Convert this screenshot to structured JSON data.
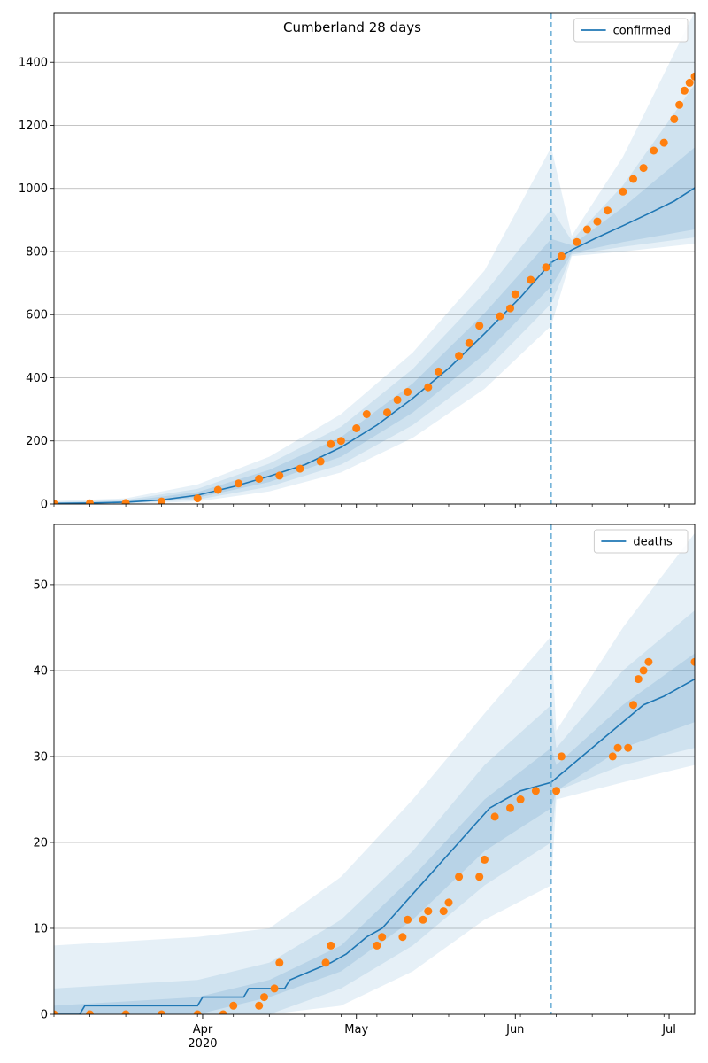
{
  "figure": {
    "title": "Cumberland 28 days"
  },
  "colors": {
    "line": "#1f77b4",
    "points": "#ff7f0e",
    "band": "#1f77b4",
    "grid": "#b0b0b0",
    "vline": "#6baed6"
  },
  "chart_data": [
    {
      "type": "line",
      "title": "Cumberland 28 days",
      "xlabel": "",
      "ylabel": "",
      "x_range": [
        "2020-03-03",
        "2020-07-06"
      ],
      "ylim": [
        0,
        1555
      ],
      "yticks": [
        0,
        200,
        400,
        600,
        800,
        1000,
        1200,
        1400
      ],
      "grid": "horizontal",
      "legend": "top-right",
      "forecast_start": "2020-06-08",
      "series": [
        {
          "name": "confirmed",
          "kind": "median-line"
        },
        {
          "kind": "observed-points"
        }
      ],
      "median": [
        {
          "x": "2020-03-03",
          "y": 2
        },
        {
          "x": "2020-03-10",
          "y": 3
        },
        {
          "x": "2020-03-17",
          "y": 6
        },
        {
          "x": "2020-03-24",
          "y": 13
        },
        {
          "x": "2020-03-31",
          "y": 28
        },
        {
          "x": "2020-04-07",
          "y": 55
        },
        {
          "x": "2020-04-14",
          "y": 88
        },
        {
          "x": "2020-04-21",
          "y": 125
        },
        {
          "x": "2020-04-28",
          "y": 180
        },
        {
          "x": "2020-05-05",
          "y": 250
        },
        {
          "x": "2020-05-12",
          "y": 335
        },
        {
          "x": "2020-05-19",
          "y": 430
        },
        {
          "x": "2020-05-26",
          "y": 540
        },
        {
          "x": "2020-06-02",
          "y": 655
        },
        {
          "x": "2020-06-08",
          "y": 765
        },
        {
          "x": "2020-06-12",
          "y": 805
        },
        {
          "x": "2020-06-17",
          "y": 845
        },
        {
          "x": "2020-06-22",
          "y": 882
        },
        {
          "x": "2020-06-27",
          "y": 920
        },
        {
          "x": "2020-07-02",
          "y": 960
        },
        {
          "x": "2020-07-06",
          "y": 1002
        }
      ],
      "band_inner": [
        {
          "x": "2020-03-03",
          "lo": 1,
          "hi": 4
        },
        {
          "x": "2020-03-17",
          "lo": 4,
          "hi": 9
        },
        {
          "x": "2020-03-31",
          "lo": 20,
          "hi": 38
        },
        {
          "x": "2020-04-14",
          "lo": 70,
          "hi": 108
        },
        {
          "x": "2020-04-28",
          "lo": 150,
          "hi": 212
        },
        {
          "x": "2020-05-12",
          "lo": 290,
          "hi": 382
        },
        {
          "x": "2020-05-26",
          "lo": 475,
          "hi": 605
        },
        {
          "x": "2020-06-08",
          "lo": 690,
          "hi": 840
        },
        {
          "x": "2020-06-12",
          "lo": 795,
          "hi": 820
        },
        {
          "x": "2020-06-22",
          "lo": 830,
          "hi": 940
        },
        {
          "x": "2020-07-06",
          "lo": 870,
          "hi": 1130
        }
      ],
      "band_mid": [
        {
          "x": "2020-03-03",
          "lo": 0,
          "hi": 6
        },
        {
          "x": "2020-03-17",
          "lo": 2,
          "hi": 13
        },
        {
          "x": "2020-03-31",
          "lo": 14,
          "hi": 48
        },
        {
          "x": "2020-04-14",
          "lo": 55,
          "hi": 128
        },
        {
          "x": "2020-04-28",
          "lo": 125,
          "hi": 245
        },
        {
          "x": "2020-05-12",
          "lo": 250,
          "hi": 428
        },
        {
          "x": "2020-05-26",
          "lo": 420,
          "hi": 668
        },
        {
          "x": "2020-06-08",
          "lo": 635,
          "hi": 935
        },
        {
          "x": "2020-06-12",
          "lo": 790,
          "hi": 835
        },
        {
          "x": "2020-06-22",
          "lo": 815,
          "hi": 1010
        },
        {
          "x": "2020-07-06",
          "lo": 845,
          "hi": 1330
        }
      ],
      "band_outer": [
        {
          "x": "2020-03-03",
          "lo": 0,
          "hi": 9
        },
        {
          "x": "2020-03-17",
          "lo": 0,
          "hi": 18
        },
        {
          "x": "2020-03-31",
          "lo": 8,
          "hi": 62
        },
        {
          "x": "2020-04-14",
          "lo": 40,
          "hi": 150
        },
        {
          "x": "2020-04-28",
          "lo": 100,
          "hi": 285
        },
        {
          "x": "2020-05-12",
          "lo": 210,
          "hi": 480
        },
        {
          "x": "2020-05-26",
          "lo": 365,
          "hi": 740
        },
        {
          "x": "2020-06-08",
          "lo": 565,
          "hi": 1130
        },
        {
          "x": "2020-06-12",
          "lo": 785,
          "hi": 850
        },
        {
          "x": "2020-06-22",
          "lo": 800,
          "hi": 1100
        },
        {
          "x": "2020-07-06",
          "lo": 825,
          "hi": 1560
        }
      ],
      "observed": [
        {
          "x": "2020-03-03",
          "y": 1
        },
        {
          "x": "2020-03-10",
          "y": 2
        },
        {
          "x": "2020-03-17",
          "y": 3
        },
        {
          "x": "2020-03-24",
          "y": 8
        },
        {
          "x": "2020-03-31",
          "y": 18
        },
        {
          "x": "2020-04-04",
          "y": 45
        },
        {
          "x": "2020-04-08",
          "y": 65
        },
        {
          "x": "2020-04-12",
          "y": 80
        },
        {
          "x": "2020-04-16",
          "y": 90
        },
        {
          "x": "2020-04-20",
          "y": 112
        },
        {
          "x": "2020-04-24",
          "y": 135
        },
        {
          "x": "2020-04-26",
          "y": 190
        },
        {
          "x": "2020-04-28",
          "y": 200
        },
        {
          "x": "2020-05-01",
          "y": 240
        },
        {
          "x": "2020-05-03",
          "y": 285
        },
        {
          "x": "2020-05-07",
          "y": 290
        },
        {
          "x": "2020-05-09",
          "y": 330
        },
        {
          "x": "2020-05-11",
          "y": 355
        },
        {
          "x": "2020-05-15",
          "y": 370
        },
        {
          "x": "2020-05-17",
          "y": 420
        },
        {
          "x": "2020-05-21",
          "y": 470
        },
        {
          "x": "2020-05-23",
          "y": 510
        },
        {
          "x": "2020-05-25",
          "y": 565
        },
        {
          "x": "2020-05-29",
          "y": 595
        },
        {
          "x": "2020-05-31",
          "y": 620
        },
        {
          "x": "2020-06-01",
          "y": 665
        },
        {
          "x": "2020-06-04",
          "y": 710
        },
        {
          "x": "2020-06-07",
          "y": 750
        },
        {
          "x": "2020-06-10",
          "y": 785
        },
        {
          "x": "2020-06-13",
          "y": 830
        },
        {
          "x": "2020-06-15",
          "y": 870
        },
        {
          "x": "2020-06-17",
          "y": 895
        },
        {
          "x": "2020-06-19",
          "y": 930
        },
        {
          "x": "2020-06-22",
          "y": 990
        },
        {
          "x": "2020-06-24",
          "y": 1030
        },
        {
          "x": "2020-06-26",
          "y": 1065
        },
        {
          "x": "2020-06-28",
          "y": 1120
        },
        {
          "x": "2020-06-30",
          "y": 1145
        },
        {
          "x": "2020-07-02",
          "y": 1220
        },
        {
          "x": "2020-07-03",
          "y": 1265
        },
        {
          "x": "2020-07-04",
          "y": 1310
        },
        {
          "x": "2020-07-05",
          "y": 1335
        },
        {
          "x": "2020-07-06",
          "y": 1355
        }
      ]
    },
    {
      "type": "line",
      "title": "",
      "xlabel": "",
      "ylabel": "",
      "x_range": [
        "2020-03-03",
        "2020-07-06"
      ],
      "ylim": [
        0,
        57
      ],
      "yticks": [
        0,
        10,
        20,
        30,
        40,
        50
      ],
      "x_tick_labels": [
        {
          "x": "2020-04-01",
          "label": "Apr",
          "sublabel": "2020"
        },
        {
          "x": "2020-05-01",
          "label": "May"
        },
        {
          "x": "2020-06-01",
          "label": "Jun"
        },
        {
          "x": "2020-07-01",
          "label": "Jul"
        }
      ],
      "grid": "horizontal",
      "legend": "top-right",
      "forecast_start": "2020-06-08",
      "series": [
        {
          "name": "deaths",
          "kind": "median-line"
        },
        {
          "kind": "observed-points"
        }
      ],
      "median": [
        {
          "x": "2020-03-03",
          "y": 0
        },
        {
          "x": "2020-03-08",
          "y": 0
        },
        {
          "x": "2020-03-09",
          "y": 1
        },
        {
          "x": "2020-03-31",
          "y": 1
        },
        {
          "x": "2020-04-01",
          "y": 2
        },
        {
          "x": "2020-04-09",
          "y": 2
        },
        {
          "x": "2020-04-10",
          "y": 3
        },
        {
          "x": "2020-04-17",
          "y": 3
        },
        {
          "x": "2020-04-18",
          "y": 4
        },
        {
          "x": "2020-04-22",
          "y": 5
        },
        {
          "x": "2020-04-26",
          "y": 6
        },
        {
          "x": "2020-04-29",
          "y": 7
        },
        {
          "x": "2020-05-03",
          "y": 9
        },
        {
          "x": "2020-05-06",
          "y": 10
        },
        {
          "x": "2020-05-09",
          "y": 12
        },
        {
          "x": "2020-05-12",
          "y": 14
        },
        {
          "x": "2020-05-15",
          "y": 16
        },
        {
          "x": "2020-05-18",
          "y": 18
        },
        {
          "x": "2020-05-21",
          "y": 20
        },
        {
          "x": "2020-05-24",
          "y": 22
        },
        {
          "x": "2020-05-27",
          "y": 24
        },
        {
          "x": "2020-05-30",
          "y": 25
        },
        {
          "x": "2020-06-02",
          "y": 26
        },
        {
          "x": "2020-06-08",
          "y": 27
        },
        {
          "x": "2020-06-10",
          "y": 28
        },
        {
          "x": "2020-06-14",
          "y": 30
        },
        {
          "x": "2020-06-18",
          "y": 32
        },
        {
          "x": "2020-06-22",
          "y": 34
        },
        {
          "x": "2020-06-26",
          "y": 36
        },
        {
          "x": "2020-06-30",
          "y": 37
        },
        {
          "x": "2020-07-03",
          "y": 38
        },
        {
          "x": "2020-07-06",
          "y": 39
        }
      ],
      "band_inner": [
        {
          "x": "2020-03-03",
          "lo": 0,
          "hi": 1
        },
        {
          "x": "2020-03-31",
          "lo": 0,
          "hi": 2
        },
        {
          "x": "2020-04-14",
          "lo": 2,
          "hi": 4
        },
        {
          "x": "2020-04-28",
          "lo": 5,
          "hi": 8
        },
        {
          "x": "2020-05-12",
          "lo": 11,
          "hi": 16
        },
        {
          "x": "2020-05-26",
          "lo": 19,
          "hi": 25
        },
        {
          "x": "2020-06-08",
          "lo": 24,
          "hi": 31
        },
        {
          "x": "2020-06-09",
          "lo": 26,
          "hi": 29
        },
        {
          "x": "2020-06-22",
          "lo": 31,
          "hi": 36
        },
        {
          "x": "2020-07-06",
          "lo": 34,
          "hi": 42
        }
      ],
      "band_mid": [
        {
          "x": "2020-03-03",
          "lo": 0,
          "hi": 3
        },
        {
          "x": "2020-03-31",
          "lo": 0,
          "hi": 4
        },
        {
          "x": "2020-04-14",
          "lo": 0,
          "hi": 6
        },
        {
          "x": "2020-04-28",
          "lo": 3,
          "hi": 11
        },
        {
          "x": "2020-05-12",
          "lo": 8,
          "hi": 19
        },
        {
          "x": "2020-05-26",
          "lo": 15,
          "hi": 29
        },
        {
          "x": "2020-06-08",
          "lo": 20,
          "hi": 36
        },
        {
          "x": "2020-06-09",
          "lo": 26,
          "hi": 31
        },
        {
          "x": "2020-06-22",
          "lo": 29,
          "hi": 40
        },
        {
          "x": "2020-07-06",
          "lo": 31,
          "hi": 47
        }
      ],
      "band_outer": [
        {
          "x": "2020-03-03",
          "lo": 0,
          "hi": 8
        },
        {
          "x": "2020-03-31",
          "lo": 0,
          "hi": 9
        },
        {
          "x": "2020-04-14",
          "lo": 0,
          "hi": 10
        },
        {
          "x": "2020-04-28",
          "lo": 1,
          "hi": 16
        },
        {
          "x": "2020-05-12",
          "lo": 5,
          "hi": 25
        },
        {
          "x": "2020-05-26",
          "lo": 11,
          "hi": 35
        },
        {
          "x": "2020-06-08",
          "lo": 15,
          "hi": 44
        },
        {
          "x": "2020-06-09",
          "lo": 25,
          "hi": 33
        },
        {
          "x": "2020-06-22",
          "lo": 27,
          "hi": 45
        },
        {
          "x": "2020-07-06",
          "lo": 29,
          "hi": 56
        }
      ],
      "observed": [
        {
          "x": "2020-03-03",
          "y": 0
        },
        {
          "x": "2020-03-10",
          "y": 0
        },
        {
          "x": "2020-03-17",
          "y": 0
        },
        {
          "x": "2020-03-24",
          "y": 0
        },
        {
          "x": "2020-03-31",
          "y": 0
        },
        {
          "x": "2020-04-05",
          "y": 0
        },
        {
          "x": "2020-04-07",
          "y": 1
        },
        {
          "x": "2020-04-12",
          "y": 1
        },
        {
          "x": "2020-04-13",
          "y": 2
        },
        {
          "x": "2020-04-15",
          "y": 3
        },
        {
          "x": "2020-04-16",
          "y": 6
        },
        {
          "x": "2020-04-25",
          "y": 6
        },
        {
          "x": "2020-04-26",
          "y": 8
        },
        {
          "x": "2020-05-05",
          "y": 8
        },
        {
          "x": "2020-05-06",
          "y": 9
        },
        {
          "x": "2020-05-10",
          "y": 9
        },
        {
          "x": "2020-05-11",
          "y": 11
        },
        {
          "x": "2020-05-14",
          "y": 11
        },
        {
          "x": "2020-05-15",
          "y": 12
        },
        {
          "x": "2020-05-18",
          "y": 12
        },
        {
          "x": "2020-05-19",
          "y": 13
        },
        {
          "x": "2020-05-21",
          "y": 16
        },
        {
          "x": "2020-05-25",
          "y": 16
        },
        {
          "x": "2020-05-26",
          "y": 18
        },
        {
          "x": "2020-05-28",
          "y": 23
        },
        {
          "x": "2020-05-31",
          "y": 24
        },
        {
          "x": "2020-06-02",
          "y": 25
        },
        {
          "x": "2020-06-05",
          "y": 26
        },
        {
          "x": "2020-06-09",
          "y": 26
        },
        {
          "x": "2020-06-10",
          "y": 30
        },
        {
          "x": "2020-06-20",
          "y": 30
        },
        {
          "x": "2020-06-21",
          "y": 31
        },
        {
          "x": "2020-06-23",
          "y": 31
        },
        {
          "x": "2020-06-24",
          "y": 36
        },
        {
          "x": "2020-06-25",
          "y": 39
        },
        {
          "x": "2020-06-26",
          "y": 40
        },
        {
          "x": "2020-06-27",
          "y": 41
        },
        {
          "x": "2020-07-06",
          "y": 41
        }
      ]
    }
  ]
}
